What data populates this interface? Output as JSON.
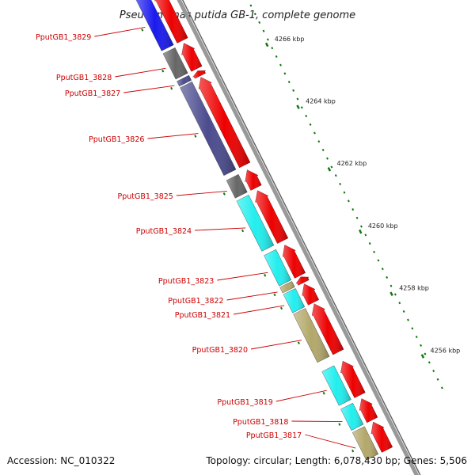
{
  "title": "Pseudomonas putida GB-1, complete genome",
  "footer": {
    "accession": "Accession: NC_010322",
    "topology": "Topology: circular; Length: 6,078,430 bp; Genes: 5,506"
  },
  "colors": {
    "cds": "#ee0000",
    "backbone": "#999999",
    "tick": "#117711",
    "label": "#cc0000"
  },
  "ticks": [
    {
      "label": "4266 kbp"
    },
    {
      "label": "4264 kbp"
    },
    {
      "label": "4262 kbp"
    },
    {
      "label": "4260 kbp"
    },
    {
      "label": "4258 kbp"
    },
    {
      "label": "4256 kbp"
    }
  ],
  "genes": [
    {
      "label": "PputGB1_3829",
      "cog_color": "#1a1aee"
    },
    {
      "label": "PputGB1_3828",
      "cog_color": "#666666"
    },
    {
      "label": "PputGB1_3827",
      "cog_color": "#4b4b8f"
    },
    {
      "label": "PputGB1_3826",
      "cog_color": "#4b4b8f"
    },
    {
      "label": "PputGB1_3825",
      "cog_color": "#666666"
    },
    {
      "label": "PputGB1_3824",
      "cog_color": "#22eeee"
    },
    {
      "label": "PputGB1_3823",
      "cog_color": "#22eeee"
    },
    {
      "label": "PputGB1_3822",
      "cog_color": "#b3a86a"
    },
    {
      "label": "PputGB1_3821",
      "cog_color": "#22eeee"
    },
    {
      "label": "PputGB1_3820",
      "cog_color": "#b3a86a"
    },
    {
      "label": "PputGB1_3819",
      "cog_color": "#22eeee"
    },
    {
      "label": "PputGB1_3818",
      "cog_color": "#22eeee"
    },
    {
      "label": "PputGB1_3817",
      "cog_color": "#b3a86a"
    }
  ]
}
